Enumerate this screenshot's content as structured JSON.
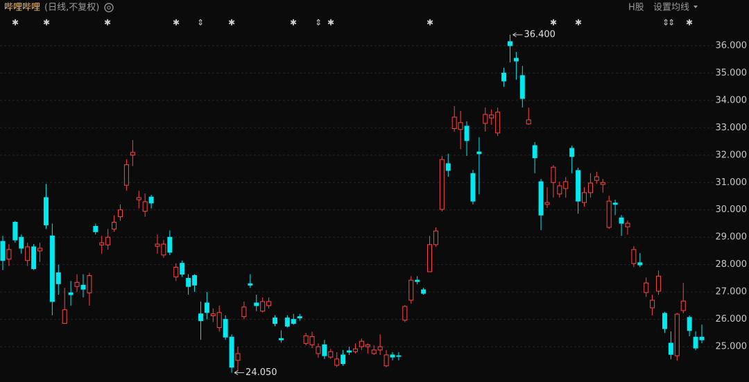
{
  "chart_data": {
    "type": "candlestick",
    "title": "哔哩哔哩",
    "subtitle": "(日线,不复权)",
    "market": "H股",
    "settings": "设置均线",
    "up_color": "#ff4545",
    "down_color": "#00e8f0",
    "grid": true,
    "ylim": [
      23.71,
      37.67
    ],
    "yticks": [
      {
        "value": 25,
        "label": "25.000"
      },
      {
        "value": 26,
        "label": "26.000"
      },
      {
        "value": 27,
        "label": "27.000"
      },
      {
        "value": 28,
        "label": "28.000"
      },
      {
        "value": 29,
        "label": "29.000"
      },
      {
        "value": 30,
        "label": "30.000"
      },
      {
        "value": 31,
        "label": "31.000"
      },
      {
        "value": 32,
        "label": "32.000"
      },
      {
        "value": 33,
        "label": "33.000"
      },
      {
        "value": 34,
        "label": "34.000"
      },
      {
        "value": 35,
        "label": "35.000"
      },
      {
        "value": 36,
        "label": "36.000"
      }
    ],
    "max_label": {
      "value": 36.4,
      "label": "36.400"
    },
    "min_label": {
      "value": 24.05,
      "label": "24.050"
    },
    "open": [
      28.85,
      28.2,
      29.55,
      29.0,
      28.15,
      28.65,
      28.5,
      30.45,
      29.05,
      27.7,
      25.85,
      26.97,
      27.2,
      27.25,
      26.97,
      29.4,
      28.72,
      28.72,
      29.3,
      29.75,
      30.9,
      32.0,
      30.37,
      29.95,
      30.47,
      28.67,
      28.35,
      29.0,
      27.55,
      28.05,
      27.5,
      27.6,
      26.2,
      26.6,
      26.13,
      25.7,
      26.0,
      25.35,
      24.5,
      26.1,
      27.3,
      26.6,
      26.3,
      26.5,
      26.05,
      25.3,
      26.05,
      26.0,
      26.1,
      25.12,
      25.07,
      24.75,
      25.07,
      24.62,
      24.32,
      24.7,
      24.85,
      24.82,
      25.0,
      25.0,
      24.75,
      24.88,
      24.3,
      24.7,
      24.67,
      25.97,
      26.7,
      27.43,
      27.08,
      27.74,
      28.73,
      30.02,
      31.69,
      32.97,
      32.94,
      33.06,
      31.33,
      32.12,
      33.16,
      33.36,
      32.81,
      35.0,
      36.15,
      35.54,
      34.91,
      33.14,
      32.35,
      31.03,
      30.2,
      31.0,
      30.58,
      30.78,
      32.25,
      31.44,
      30.27,
      30.63,
      31.08,
      30.93,
      29.36,
      30.25,
      29.71,
      29.38,
      28.04,
      28.07,
      26.98,
      26.42,
      27.03,
      26.22,
      25.13,
      24.67,
      26.32,
      26.07,
      25.35,
      25.35
    ],
    "high": [
      29.05,
      28.75,
      29.6,
      29.1,
      28.8,
      28.75,
      28.8,
      30.95,
      29.5,
      28.0,
      27.15,
      27.4,
      27.65,
      27.65,
      27.7,
      29.5,
      29.05,
      29.3,
      29.8,
      30.2,
      31.85,
      32.55,
      30.7,
      30.6,
      30.55,
      29.1,
      28.9,
      29.25,
      28.05,
      28.15,
      27.65,
      27.65,
      26.65,
      27.0,
      26.4,
      26.5,
      26.15,
      25.45,
      25.0,
      26.65,
      27.65,
      26.9,
      26.8,
      26.8,
      26.15,
      25.6,
      26.15,
      26.2,
      26.2,
      25.5,
      25.55,
      25.12,
      25.25,
      24.92,
      24.8,
      24.88,
      25.0,
      25.12,
      25.3,
      25.12,
      25.05,
      25.45,
      24.88,
      24.8,
      24.8,
      26.52,
      27.58,
      27.58,
      27.15,
      29.05,
      29.36,
      31.97,
      32.05,
      33.79,
      33.62,
      33.24,
      31.46,
      32.65,
      33.74,
      33.67,
      33.74,
      35.19,
      36.4,
      35.77,
      35.26,
      33.74,
      32.48,
      31.13,
      30.83,
      31.64,
      31.03,
      31.2,
      32.35,
      31.54,
      30.83,
      31.34,
      31.39,
      31.13,
      30.52,
      30.37,
      29.81,
      29.61,
      28.67,
      28.42,
      27.53,
      26.9,
      27.79,
      26.27,
      25.56,
      26.24,
      27.33,
      26.14,
      25.56,
      25.81
    ],
    "low": [
      27.8,
      27.95,
      28.8,
      28.4,
      27.95,
      27.8,
      28.1,
      29.3,
      26.15,
      26.9,
      25.85,
      26.5,
      27.0,
      26.8,
      26.5,
      29.1,
      28.4,
      28.55,
      29.2,
      29.6,
      30.7,
      31.6,
      30.05,
      29.75,
      30.05,
      28.4,
      28.25,
      28.35,
      27.4,
      27.55,
      26.9,
      27.0,
      25.25,
      26.0,
      25.9,
      25.55,
      25.25,
      24.05,
      24.1,
      26.0,
      27.15,
      26.3,
      26.25,
      26.4,
      25.75,
      25.15,
      25.7,
      25.8,
      25.95,
      25.05,
      24.95,
      24.6,
      24.55,
      24.55,
      24.25,
      24.3,
      24.7,
      24.75,
      24.88,
      24.75,
      24.7,
      24.7,
      24.25,
      24.5,
      24.5,
      25.9,
      26.57,
      27.28,
      26.9,
      27.74,
      28.65,
      29.94,
      31.21,
      32.86,
      32.22,
      31.97,
      30.2,
      30.57,
      32.86,
      33.11,
      32.7,
      34.5,
      35.39,
      34.76,
      33.74,
      33.11,
      31.34,
      29.26,
      30.07,
      30.45,
      30.45,
      30.45,
      31.34,
      29.86,
      30.12,
      30.45,
      30.96,
      30.63,
      29.31,
      29.81,
      29.05,
      29.1,
      27.91,
      27.91,
      26.82,
      26.14,
      26.9,
      25.5,
      24.54,
      24.49,
      26.22,
      25.38,
      24.87,
      25.13
    ],
    "close": [
      28.15,
      28.55,
      28.9,
      28.6,
      28.65,
      27.85,
      28.6,
      29.45,
      26.65,
      27.3,
      26.35,
      26.9,
      27.35,
      27.1,
      27.6,
      29.2,
      28.8,
      29.0,
      29.55,
      30.0,
      31.65,
      32.1,
      30.45,
      30.3,
      30.25,
      28.75,
      28.75,
      28.45,
      27.9,
      27.65,
      27.2,
      27.25,
      25.95,
      26.25,
      26.2,
      26.25,
      25.35,
      24.25,
      24.75,
      26.45,
      27.25,
      26.5,
      26.65,
      26.65,
      25.85,
      25.25,
      25.75,
      25.85,
      26.05,
      25.4,
      25.37,
      25.0,
      24.67,
      24.82,
      24.55,
      24.38,
      24.8,
      24.92,
      25.2,
      25.07,
      24.88,
      25.0,
      24.7,
      24.62,
      24.65,
      26.47,
      27.43,
      27.38,
      26.95,
      28.73,
      29.23,
      31.84,
      31.44,
      33.39,
      33.19,
      32.53,
      30.32,
      32.05,
      33.49,
      33.47,
      33.57,
      34.71,
      36.0,
      35.44,
      34.07,
      33.29,
      31.9,
      29.81,
      30.27,
      31.56,
      30.88,
      31.03,
      31.95,
      30.32,
      30.63,
      30.98,
      31.21,
      31.0,
      30.32,
      30.2,
      29.51,
      29.51,
      28.55,
      27.99,
      27.33,
      26.7,
      27.58,
      25.66,
      24.72,
      26.19,
      26.67,
      25.59,
      24.95,
      25.25
    ]
  }
}
